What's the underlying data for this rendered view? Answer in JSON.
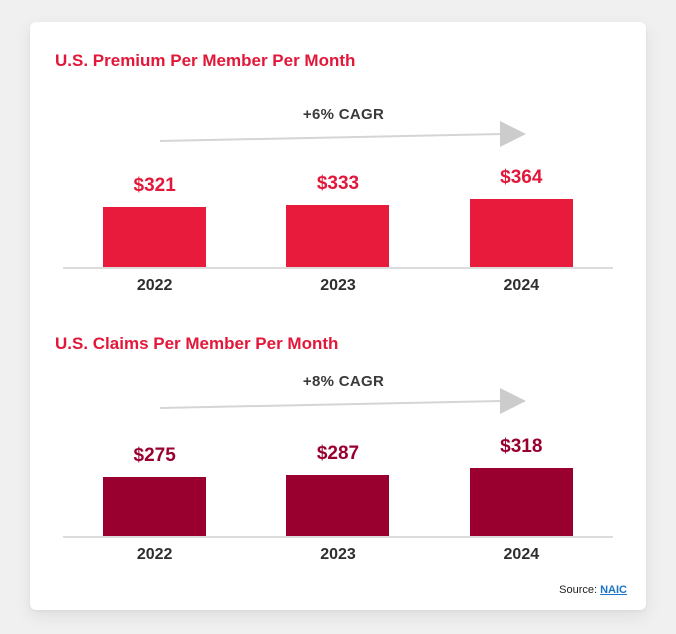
{
  "page": {
    "background_color": "#f1f0f0",
    "card_color": "#ffffff",
    "brand_red": "#e2183a",
    "brand_maroon": "#990030",
    "arrow_color": "#d6d5d5"
  },
  "chart_data": [
    {
      "type": "bar",
      "title": "U.S. Premium Per Member Per Month",
      "annotation": "+6% CAGR",
      "categories": [
        "2022",
        "2023",
        "2024"
      ],
      "values": [
        321,
        333,
        364
      ],
      "value_labels": [
        "$321",
        "$333",
        "$364"
      ],
      "bar_color": "#e81b3c",
      "label_color": "#e2183a",
      "xlabel": "",
      "ylabel": "",
      "grid": false,
      "legend": false
    },
    {
      "type": "bar",
      "title": "U.S. Claims Per Member Per Month",
      "annotation": "+8% CAGR",
      "categories": [
        "2022",
        "2023",
        "2024"
      ],
      "values": [
        275,
        287,
        318
      ],
      "value_labels": [
        "$275",
        "$287",
        "$318"
      ],
      "bar_color": "#990030",
      "label_color": "#990030",
      "xlabel": "",
      "ylabel": "",
      "grid": false,
      "legend": false
    }
  ],
  "source": {
    "label": "Source: ",
    "link_text": "NAIC"
  }
}
